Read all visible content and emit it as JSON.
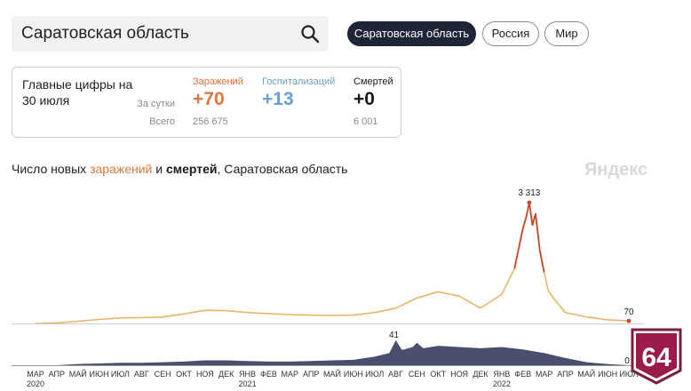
{
  "search": {
    "value": "Саратовская область"
  },
  "regions": [
    {
      "label": "Саратовская область",
      "active": true
    },
    {
      "label": "Россия",
      "active": false
    },
    {
      "label": "Мир",
      "active": false
    }
  ],
  "summary": {
    "title": "Главные цифры на 30 июля",
    "row_daily": "За сутки",
    "row_total": "Всего",
    "columns": [
      {
        "label": "Заражений",
        "daily": "+70",
        "total": "256 675",
        "color": "#e2763b"
      },
      {
        "label": "Госпитализаций",
        "daily": "+13",
        "total": "",
        "color": "#6a9fcf"
      },
      {
        "label": "Смертей",
        "daily": "+0",
        "total": "6 001",
        "color": "#1a1a1a"
      }
    ]
  },
  "chart_title": {
    "prefix": "Число новых ",
    "infections": "заражений",
    "middle": " и ",
    "deaths": "смертей",
    "suffix": ", Саратовская область"
  },
  "watermark": "Яндекс",
  "badge_text": "64",
  "chart_data": {
    "type": "area",
    "title": "Число новых заражений и смертей, Саратовская область",
    "x_axis": {
      "ticks": [
        "МАР",
        "АПР",
        "МАЙ",
        "ИЮН",
        "ИЮЛ",
        "АВГ",
        "СЕН",
        "ОКТ",
        "НОЯ",
        "ДЕК",
        "ЯНВ",
        "ФЕВ",
        "МАР",
        "АПР",
        "МАЙ",
        "ИЮН",
        "ИЮЛ",
        "АВГ",
        "СЕН",
        "ОКТ",
        "НОЯ",
        "ДЕК",
        "ЯНВ",
        "ФЕВ",
        "МАР",
        "АПР",
        "МАЙ",
        "ИЮН",
        "ИЮЛ"
      ],
      "years": [
        {
          "label": "2020",
          "tick_index": 0
        },
        {
          "label": "2021",
          "tick_index": 10
        },
        {
          "label": "2022",
          "tick_index": 22
        }
      ]
    },
    "series": [
      {
        "name": "заражений",
        "color": "#e8b46a",
        "peak_color": "#c44a2e",
        "points": [
          [
            0,
            0
          ],
          [
            1,
            15
          ],
          [
            2,
            60
          ],
          [
            3,
            110
          ],
          [
            4,
            150
          ],
          [
            5,
            160
          ],
          [
            6,
            175
          ],
          [
            7,
            260
          ],
          [
            8,
            360
          ],
          [
            9,
            350
          ],
          [
            10,
            300
          ],
          [
            11,
            270
          ],
          [
            12,
            240
          ],
          [
            13,
            230
          ],
          [
            14,
            220
          ],
          [
            15,
            230
          ],
          [
            16,
            300
          ],
          [
            17,
            420
          ],
          [
            18,
            700
          ],
          [
            19,
            870
          ],
          [
            20,
            750
          ],
          [
            21,
            420
          ],
          [
            22,
            800
          ],
          [
            22.6,
            1500
          ],
          [
            23.0,
            2600
          ],
          [
            23.15,
            2900
          ],
          [
            23.3,
            3313
          ],
          [
            23.45,
            2700
          ],
          [
            23.6,
            3000
          ],
          [
            23.8,
            2000
          ],
          [
            24.0,
            1400
          ],
          [
            24.2,
            900
          ],
          [
            24.5,
            650
          ],
          [
            25,
            300
          ],
          [
            26,
            180
          ],
          [
            27,
            100
          ],
          [
            28,
            70
          ]
        ],
        "labels": [
          {
            "value": "3 313",
            "at": 23.3
          },
          {
            "value": "70",
            "at": 28
          }
        ]
      },
      {
        "name": "смертей",
        "color": "#4b4f6e",
        "points": [
          [
            0,
            0
          ],
          [
            1,
            0
          ],
          [
            2,
            2
          ],
          [
            3,
            3
          ],
          [
            4,
            4
          ],
          [
            5,
            4
          ],
          [
            6,
            5
          ],
          [
            7,
            6
          ],
          [
            8,
            8
          ],
          [
            9,
            8
          ],
          [
            10,
            7
          ],
          [
            11,
            6
          ],
          [
            12,
            6
          ],
          [
            13,
            7
          ],
          [
            14,
            8
          ],
          [
            15,
            9
          ],
          [
            16,
            14
          ],
          [
            16.7,
            20
          ],
          [
            17,
            41
          ],
          [
            17.3,
            25
          ],
          [
            17.8,
            30
          ],
          [
            18,
            37
          ],
          [
            18.3,
            28
          ],
          [
            19,
            32
          ],
          [
            20,
            30
          ],
          [
            21,
            28
          ],
          [
            22,
            30
          ],
          [
            23,
            26
          ],
          [
            24,
            20
          ],
          [
            25,
            12
          ],
          [
            26,
            5
          ],
          [
            27,
            2
          ],
          [
            28,
            0
          ]
        ],
        "labels": [
          {
            "value": "41",
            "at": 17
          },
          {
            "value": "0",
            "at": 28
          }
        ]
      }
    ]
  }
}
